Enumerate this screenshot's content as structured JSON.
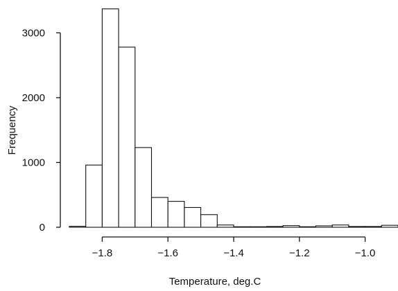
{
  "chart_data": {
    "type": "bar",
    "title": "",
    "xlabel": "Temperature, deg.C",
    "ylabel": "Frequency",
    "bin_width": 0.05,
    "bin_starts": [
      -1.9,
      -1.85,
      -1.8,
      -1.75,
      -1.7,
      -1.65,
      -1.6,
      -1.55,
      -1.5,
      -1.45,
      -1.4,
      -1.35,
      -1.3,
      -1.25,
      -1.2,
      -1.15,
      -1.1,
      -1.05,
      -1.0,
      -0.95
    ],
    "values": [
      15,
      960,
      3370,
      2780,
      1230,
      460,
      400,
      305,
      195,
      35,
      8,
      8,
      12,
      25,
      8,
      22,
      35,
      12,
      12,
      30
    ],
    "xlim": [
      -1.9,
      -0.9
    ],
    "ylim": [
      0,
      3400
    ],
    "x_ticks": [
      -1.8,
      -1.6,
      -1.4,
      -1.2,
      -1.0
    ],
    "x_tick_labels": [
      "−1.8",
      "−1.6",
      "−1.4",
      "−1.2",
      "−1.0"
    ],
    "y_ticks": [
      0,
      1000,
      2000,
      3000
    ],
    "y_tick_labels": [
      "0",
      "1000",
      "2000",
      "3000"
    ],
    "grid": false,
    "legend": "none",
    "colors": {
      "bar_fill": "#ffffff",
      "bar_stroke": "#111111"
    }
  }
}
